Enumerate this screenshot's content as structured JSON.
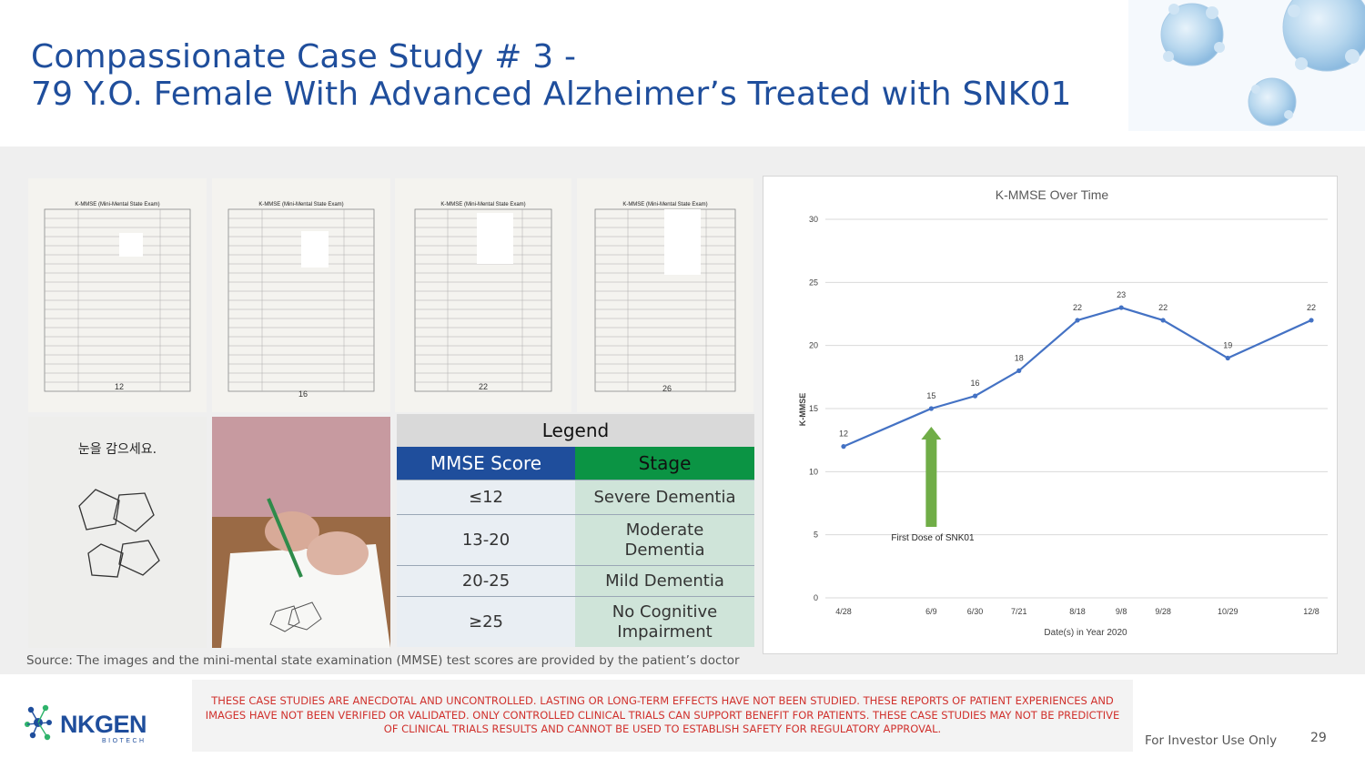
{
  "slide": {
    "title_line1": "Compassionate Case Study # 3 -",
    "title_line2": "79 Y.O. Female With Advanced Alzheimer’s Treated with SNK01",
    "source": "Source: The images and the mini-mental state examination (MMSE) test scores are provided by the patient’s doctor",
    "disclaimer": "THESE CASE STUDIES ARE ANECDOTAL AND UNCONTROLLED.  LASTING OR LONG-TERM EFFECTS HAVE NOT BEEN STUDIED.  THESE REPORTS OF PATIENT EXPERIENCES AND IMAGES HAVE NOT BEEN VERIFIED OR VALIDATED.  ONLY CONTROLLED CLINICAL TRIALS CAN SUPPORT BENEFIT FOR PATIENTS.  THESE CASE STUDIES MAY NOT BE PREDICTIVE OF CLINICAL TRIALS RESULTS AND CANNOT BE USED TO ESTABLISH SAFETY FOR REGULATORY APPROVAL.",
    "footer_label": "For Investor Use Only",
    "page_number": "29"
  },
  "logo": {
    "brand": "NKGEN",
    "sub": "BIOTECH",
    "color_primary": "#1f4e9c",
    "color_accent": "#2fb36b"
  },
  "photos": {
    "exam_sheets": [
      {
        "header": "K-MMSE (Mini-Mental State Exam)",
        "score": "12"
      },
      {
        "header": "K-MMSE (Mini-Mental State Exam)",
        "score": "16"
      },
      {
        "header": "K-MMSE (Mini-Mental State Exam)",
        "score": "22"
      },
      {
        "header": "K-MMSE (Mini-Mental State Exam)",
        "score": "26"
      }
    ],
    "drawing_sheet_text": "눈을 감으세요."
  },
  "legend": {
    "title": "Legend",
    "col1_header": "MMSE  Score",
    "col2_header": "Stage",
    "rows": [
      {
        "score": "≤12",
        "stage": "Severe Dementia"
      },
      {
        "score": "13-20",
        "stage": "Moderate Dementia"
      },
      {
        "score": "20-25",
        "stage": "Mild Dementia"
      },
      {
        "score": "≥25",
        "stage": "No Cognitive Impairment"
      }
    ]
  },
  "chart_data": {
    "type": "line",
    "title": "K-MMSE Over Time",
    "xlabel": "Date(s) in Year 2020",
    "ylabel": "K-MMSE",
    "categories": [
      "4/28",
      "6/9",
      "6/30",
      "7/21",
      "8/18",
      "9/8",
      "9/28",
      "10/29",
      "12/8"
    ],
    "x_days": [
      119,
      161,
      182,
      203,
      231,
      252,
      272,
      303,
      343
    ],
    "values": [
      12,
      15,
      16,
      18,
      22,
      23,
      22,
      19,
      22
    ],
    "ylim": [
      0,
      30
    ],
    "yticks": [
      0,
      5,
      10,
      15,
      20,
      25,
      30
    ],
    "grid": true,
    "line_color": "#4472c4",
    "annotation": {
      "text": "First Dose of SNK01",
      "at_category": "6/9",
      "arrow_color": "#70ad47"
    }
  }
}
